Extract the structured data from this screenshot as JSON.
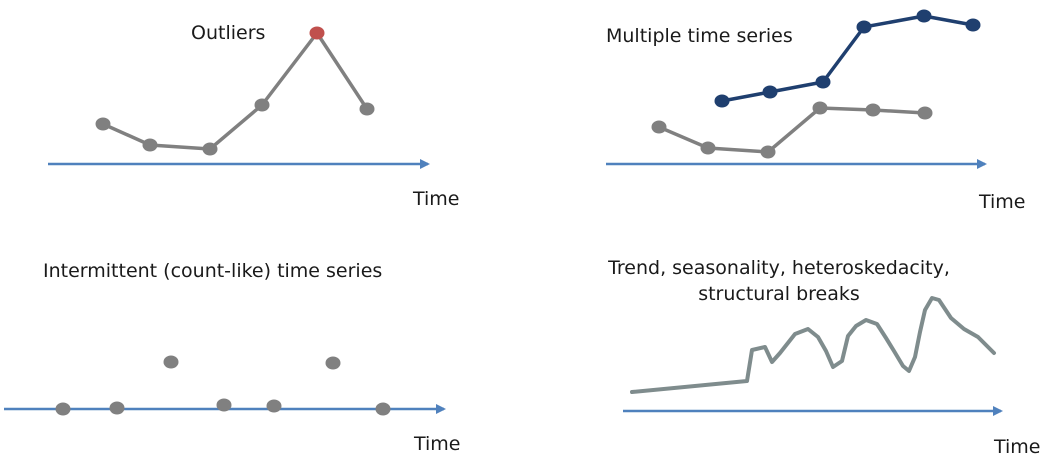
{
  "panels": [
    {
      "id": "outliers",
      "title": "Outliers",
      "axis_label": "Time",
      "series": [
        {
          "color": "#808080",
          "points": [
            [
              103,
              124
            ],
            [
              150,
              145
            ],
            [
              210,
              149
            ],
            [
              262,
              105
            ],
            [
              317,
              33
            ],
            [
              367,
              109
            ]
          ]
        }
      ],
      "outlier": {
        "color": "#c0504d",
        "index": 4
      }
    },
    {
      "id": "multiple",
      "title": "Multiple time series",
      "axis_label": "Time",
      "series": [
        {
          "color": "#1f3f6f",
          "points": [
            [
              722,
              101
            ],
            [
              770,
              92
            ],
            [
              823,
              82
            ],
            [
              864,
              27
            ],
            [
              924,
              16
            ],
            [
              973,
              25
            ]
          ]
        },
        {
          "color": "#808080",
          "points": [
            [
              659,
              127
            ],
            [
              708,
              148
            ],
            [
              768,
              152
            ],
            [
              820,
              108
            ],
            [
              873,
              110
            ],
            [
              925,
              113
            ]
          ]
        }
      ]
    },
    {
      "id": "intermittent",
      "title": "Intermittent (count-like) time series",
      "axis_label": "Time",
      "points_color": "#808080",
      "points": [
        [
          63,
          409
        ],
        [
          117,
          408
        ],
        [
          171,
          362
        ],
        [
          224,
          405
        ],
        [
          274,
          406
        ],
        [
          333,
          363
        ],
        [
          383,
          409
        ]
      ]
    },
    {
      "id": "trend",
      "title_line1": "Trend, seasonality, heteroskedacity,",
      "title_line2": "structural breaks",
      "axis_label": "Time",
      "line_color": "#7f8c8d",
      "curve": [
        [
          632,
          392
        ],
        [
          747,
          381
        ],
        [
          752,
          350
        ],
        [
          765,
          347
        ],
        [
          772,
          362
        ],
        [
          780,
          353
        ],
        [
          795,
          334
        ],
        [
          808,
          329
        ],
        [
          818,
          337
        ],
        [
          826,
          351
        ],
        [
          833,
          367
        ],
        [
          842,
          361
        ],
        [
          848,
          336
        ],
        [
          856,
          326
        ],
        [
          866,
          320
        ],
        [
          877,
          324
        ],
        [
          886,
          338
        ],
        [
          894,
          351
        ],
        [
          903,
          366
        ],
        [
          909,
          371
        ],
        [
          915,
          357
        ],
        [
          920,
          332
        ],
        [
          925,
          310
        ],
        [
          932,
          298
        ],
        [
          939,
          300
        ],
        [
          951,
          318
        ],
        [
          964,
          329
        ],
        [
          978,
          337
        ],
        [
          994,
          353
        ]
      ]
    }
  ],
  "colors": {
    "axis": "#4f81bd"
  }
}
